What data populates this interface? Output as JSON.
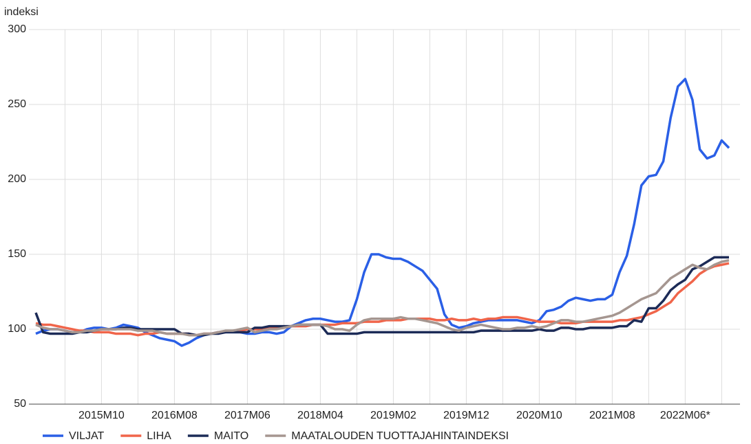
{
  "chart_data": {
    "type": "line",
    "ylabel": "indeksi",
    "categories": [
      null,
      null,
      null,
      null,
      null,
      null,
      null,
      null,
      null,
      "2015M10",
      null,
      null,
      null,
      null,
      null,
      null,
      null,
      null,
      null,
      "2016M08",
      null,
      null,
      null,
      null,
      null,
      null,
      null,
      null,
      null,
      "2017M06",
      null,
      null,
      null,
      null,
      null,
      null,
      null,
      null,
      null,
      "2018M04",
      null,
      null,
      null,
      null,
      null,
      null,
      null,
      null,
      null,
      "2019M02",
      null,
      null,
      null,
      null,
      null,
      null,
      null,
      null,
      null,
      "2019M12",
      null,
      null,
      null,
      null,
      null,
      null,
      null,
      null,
      null,
      "2020M10",
      null,
      null,
      null,
      null,
      null,
      null,
      null,
      null,
      null,
      "2021M08",
      null,
      null,
      null,
      null,
      null,
      null,
      null,
      null,
      null,
      "2022M06*",
      null,
      null,
      null,
      null,
      null,
      null
    ],
    "series": [
      {
        "name": "VILJAT",
        "color": "#2a5fe6",
        "values": [
          97,
          99,
          100,
          100,
          99,
          98,
          98,
          100,
          101,
          101,
          100,
          101,
          103,
          102,
          101,
          98,
          96,
          94,
          93,
          92,
          89,
          91,
          94,
          96,
          97,
          98,
          98,
          98,
          98,
          97,
          97,
          98,
          98,
          97,
          98,
          102,
          104,
          106,
          107,
          107,
          106,
          105,
          105,
          106,
          120,
          138,
          150,
          150,
          148,
          147,
          147,
          145,
          142,
          139,
          133,
          127,
          110,
          103,
          101,
          102,
          104,
          105,
          106,
          106,
          106,
          106,
          106,
          105,
          104,
          106,
          112,
          113,
          115,
          119,
          121,
          120,
          119,
          120,
          120,
          123,
          138,
          149,
          170,
          196,
          202,
          203,
          212,
          241,
          262,
          267,
          253,
          220,
          214,
          216,
          226,
          221
        ]
      },
      {
        "name": "LIHA",
        "color": "#f0654a",
        "values": [
          104,
          103,
          103,
          102,
          101,
          100,
          99,
          99,
          98,
          98,
          98,
          97,
          97,
          97,
          96,
          97,
          97,
          98,
          97,
          97,
          97,
          97,
          96,
          97,
          97,
          98,
          98,
          99,
          99,
          100,
          100,
          100,
          101,
          101,
          101,
          102,
          102,
          102,
          103,
          103,
          103,
          103,
          104,
          104,
          104,
          105,
          105,
          105,
          106,
          106,
          106,
          107,
          107,
          107,
          107,
          106,
          106,
          107,
          106,
          106,
          107,
          106,
          107,
          107,
          108,
          108,
          108,
          107,
          106,
          105,
          105,
          105,
          104,
          104,
          104,
          105,
          105,
          105,
          105,
          105,
          106,
          106,
          107,
          108,
          110,
          112,
          115,
          118,
          124,
          128,
          132,
          137,
          140,
          142,
          143,
          144
        ]
      },
      {
        "name": "MAITO",
        "color": "#1c2b57",
        "values": [
          111,
          98,
          97,
          97,
          97,
          97,
          98,
          98,
          99,
          100,
          100,
          100,
          101,
          101,
          100,
          100,
          100,
          100,
          100,
          100,
          97,
          97,
          96,
          96,
          97,
          97,
          98,
          98,
          98,
          98,
          101,
          101,
          102,
          102,
          102,
          102,
          103,
          103,
          103,
          103,
          97,
          97,
          97,
          97,
          97,
          98,
          98,
          98,
          98,
          98,
          98,
          98,
          98,
          98,
          98,
          98,
          98,
          98,
          98,
          98,
          98,
          99,
          99,
          99,
          99,
          99,
          99,
          99,
          99,
          100,
          99,
          99,
          101,
          101,
          100,
          100,
          101,
          101,
          101,
          101,
          102,
          102,
          106,
          105,
          114,
          114,
          119,
          126,
          130,
          133,
          140,
          142,
          145,
          148,
          148,
          148
        ]
      },
      {
        "name": "MAATALOUDEN TUOTTAJAHINTAINDEKSI",
        "color": "#a59690",
        "values": [
          103,
          101,
          100,
          100,
          99,
          98,
          98,
          99,
          99,
          100,
          100,
          100,
          100,
          100,
          99,
          99,
          99,
          98,
          97,
          97,
          97,
          96,
          96,
          97,
          97,
          98,
          99,
          99,
          100,
          101,
          98,
          99,
          100,
          100,
          101,
          102,
          103,
          103,
          103,
          103,
          102,
          100,
          100,
          99,
          103,
          106,
          107,
          107,
          107,
          107,
          108,
          107,
          107,
          106,
          105,
          104,
          102,
          100,
          99,
          101,
          102,
          103,
          102,
          101,
          100,
          100,
          101,
          101,
          102,
          101,
          102,
          104,
          106,
          106,
          105,
          105,
          106,
          107,
          108,
          109,
          111,
          114,
          117,
          120,
          122,
          124,
          129,
          134,
          137,
          140,
          143,
          141,
          140,
          143,
          145,
          146
        ]
      }
    ],
    "ylim": [
      50,
      300
    ],
    "yticks": [
      50,
      100,
      150,
      200,
      250,
      300
    ],
    "grid": true
  }
}
